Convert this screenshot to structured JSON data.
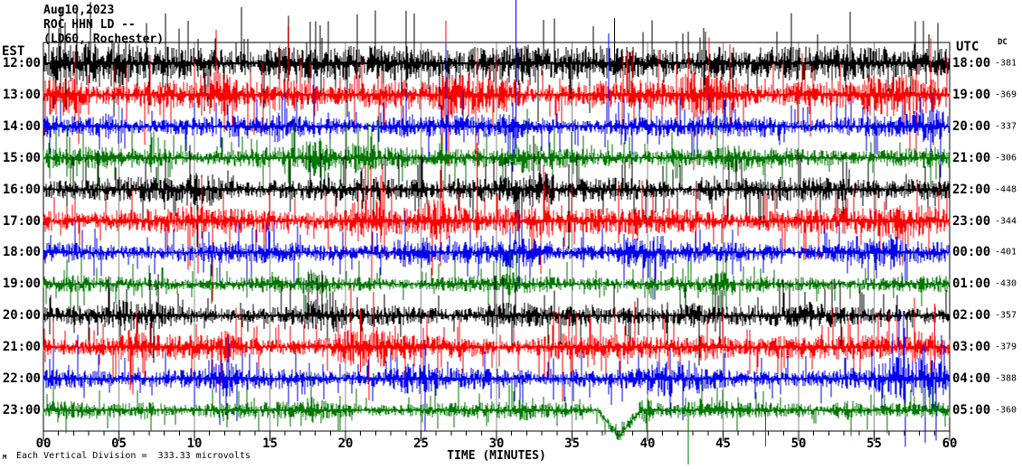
{
  "header": {
    "date": "Aug10,2023",
    "station_line": "ROC HHN LD --",
    "location_line": "(LD60, Rochester)"
  },
  "left_axis": {
    "label": "EST",
    "times": [
      "12:00",
      "13:00",
      "14:00",
      "15:00",
      "16:00",
      "17:00",
      "18:00",
      "19:00",
      "20:00",
      "21:00",
      "22:00",
      "23:00"
    ]
  },
  "right_axis": {
    "label": "UTC",
    "times": [
      "18:00",
      "19:00",
      "20:00",
      "21:00",
      "22:00",
      "23:00",
      "00:00",
      "01:00",
      "02:00",
      "03:00",
      "04:00",
      "05:00"
    ]
  },
  "dc_column": {
    "label": "DC",
    "values": [
      "-381",
      "-369",
      "-337",
      "-306",
      "-448",
      "-344",
      "-401",
      "-430",
      "-357",
      "-379",
      "-388",
      "-360"
    ]
  },
  "x_axis": {
    "title": "TIME (MINUTES)",
    "tick_labels": [
      "00",
      "05",
      "10",
      "15",
      "20",
      "25",
      "30",
      "35",
      "40",
      "45",
      "50",
      "55",
      "60"
    ],
    "minutes_min": 0,
    "minutes_max": 60,
    "minor_tick_every_min": 1,
    "major_tick_every_min": 5
  },
  "footer": {
    "marker": "M",
    "scale_note": "Each Vertical Division =  333.33 microvolts"
  },
  "colors": {
    "black": "#000000",
    "red": "#ff0000",
    "blue": "#0000ee",
    "green": "#007700",
    "grid": "#8c8c8c",
    "border": "#000000",
    "background": "#ffffff"
  },
  "chart_data": {
    "type": "line",
    "subtype": "helicorder-seismogram",
    "title": "ROC HHN LD -- (LD60, Rochester) Aug10,2023",
    "xlabel": "TIME (MINUTES)",
    "x_range": [
      0,
      60
    ],
    "grid": "vertical-gray-lines-every-5-minutes",
    "vertical_division_microvolts": 333.33,
    "rows": [
      {
        "est": "12:00",
        "utc": "18:00",
        "dc": -381,
        "color": "black",
        "amp": 14,
        "bursts": [
          [
            0,
            6,
            1.5
          ],
          [
            14,
            17,
            1.4
          ],
          [
            28,
            33,
            1.6
          ],
          [
            43,
            46,
            1.4
          ],
          [
            52,
            60,
            1.3
          ]
        ],
        "events": [
          {
            "min": 13.1,
            "up": 62,
            "dn": 10
          },
          {
            "min": 37.8,
            "up": 50,
            "dn": 8
          }
        ]
      },
      {
        "est": "13:00",
        "utc": "19:00",
        "dc": -369,
        "color": "red",
        "amp": 12,
        "bursts": [
          [
            0,
            3,
            2.1
          ],
          [
            10,
            13,
            1.5
          ],
          [
            15,
            18,
            1.6
          ],
          [
            26,
            32,
            1.6
          ],
          [
            42,
            47,
            1.8
          ],
          [
            54,
            60,
            1.5
          ]
        ],
        "events": [
          {
            "min": 16.2,
            "up": 76,
            "dn": 12
          },
          {
            "min": 2.1,
            "up": 48,
            "dn": 28
          }
        ]
      },
      {
        "est": "14:00",
        "utc": "20:00",
        "dc": -337,
        "color": "blue",
        "amp": 9,
        "bursts": [
          [
            3,
            5,
            1.4
          ],
          [
            15,
            16,
            1.8
          ],
          [
            23,
            25,
            1.3
          ],
          [
            30,
            32,
            1.5
          ],
          [
            47,
            49,
            1.3
          ],
          [
            57,
            60,
            1.6
          ]
        ],
        "events": [
          {
            "min": 31.3,
            "up": 140,
            "dn": 24
          },
          {
            "min": 17.9,
            "up": 58,
            "dn": 12
          }
        ]
      },
      {
        "est": "15:00",
        "utc": "21:00",
        "dc": -306,
        "color": "green",
        "amp": 9,
        "bursts": [
          [
            17,
            19,
            1.9
          ],
          [
            20,
            25,
            1.5
          ],
          [
            31,
            33,
            1.4
          ],
          [
            45,
            47,
            1.3
          ]
        ],
        "events": [
          {
            "min": 21.5,
            "up": 38,
            "dn": 38
          }
        ]
      },
      {
        "est": "16:00",
        "utc": "22:00",
        "dc": -448,
        "color": "black",
        "amp": 10,
        "bursts": [
          [
            9,
            12,
            1.7
          ],
          [
            27,
            34,
            1.5
          ],
          [
            43,
            45,
            1.6
          ],
          [
            56,
            59,
            1.4
          ]
        ],
        "events": [
          {
            "min": 34.8,
            "up": 28,
            "dn": 66
          }
        ]
      },
      {
        "est": "17:00",
        "utc": "23:00",
        "dc": -344,
        "color": "red",
        "amp": 11,
        "bursts": [
          [
            9,
            11,
            1.4
          ],
          [
            20,
            23,
            1.7
          ],
          [
            25,
            28,
            1.6
          ],
          [
            30,
            34,
            1.8
          ],
          [
            55,
            60,
            1.5
          ]
        ],
        "events": [
          {
            "min": 28.7,
            "up": 86,
            "dn": 14
          },
          {
            "min": 43.2,
            "up": 38,
            "dn": 34
          }
        ]
      },
      {
        "est": "18:00",
        "utc": "00:00",
        "dc": -401,
        "color": "blue",
        "amp": 9,
        "bursts": [
          [
            23,
            26,
            1.5
          ],
          [
            30,
            34,
            1.6
          ],
          [
            38,
            42,
            1.5
          ],
          [
            53,
            57,
            1.6
          ]
        ],
        "events": [
          {
            "min": 31.5,
            "up": 48,
            "dn": 38
          }
        ]
      },
      {
        "est": "19:00",
        "utc": "01:00",
        "dc": -430,
        "color": "green",
        "amp": 7,
        "bursts": [
          [
            17,
            19,
            1.6
          ],
          [
            30,
            32,
            1.3
          ],
          [
            44,
            46,
            1.5
          ]
        ],
        "events": [
          {
            "min": 45.2,
            "up": 32,
            "dn": 28
          }
        ]
      },
      {
        "est": "20:00",
        "utc": "02:00",
        "dc": -357,
        "color": "black",
        "amp": 9,
        "bursts": [
          [
            4,
            8,
            1.4
          ],
          [
            17,
            20,
            1.5
          ],
          [
            29,
            33,
            1.4
          ],
          [
            41,
            44,
            1.6
          ],
          [
            50,
            53,
            1.3
          ]
        ],
        "events": [
          {
            "min": 44.5,
            "up": 38,
            "dn": 18
          }
        ]
      },
      {
        "est": "21:00",
        "utc": "03:00",
        "dc": -379,
        "color": "red",
        "amp": 10,
        "bursts": [
          [
            5,
            7,
            1.6
          ],
          [
            11,
            13,
            1.5
          ],
          [
            19,
            24,
            1.7
          ],
          [
            33,
            35,
            1.3
          ],
          [
            43,
            46,
            1.6
          ],
          [
            57,
            60,
            1.8
          ]
        ],
        "events": [
          {
            "min": 21.0,
            "up": 42,
            "dn": 28
          },
          {
            "min": 59.0,
            "up": 48,
            "dn": 24
          }
        ]
      },
      {
        "est": "22:00",
        "utc": "04:00",
        "dc": -388,
        "color": "blue",
        "amp": 9,
        "bursts": [
          [
            11,
            13,
            1.7
          ],
          [
            23,
            26,
            1.5
          ],
          [
            34,
            36,
            1.3
          ],
          [
            40,
            44,
            1.6
          ],
          [
            55,
            60,
            2.0
          ]
        ],
        "events": [
          {
            "min": 57.0,
            "up": 56,
            "dn": 30
          },
          {
            "min": 41.5,
            "up": 34,
            "dn": 34
          }
        ]
      },
      {
        "est": "23:00",
        "utc": "05:00",
        "dc": -360,
        "color": "green",
        "amp": 7,
        "bursts": [
          [
            6,
            8,
            1.4
          ],
          [
            17,
            19,
            1.6
          ],
          [
            31,
            33,
            1.5
          ],
          [
            39.3,
            40.5,
            2.2
          ],
          [
            43,
            45,
            1.5
          ],
          [
            52,
            54,
            1.6
          ]
        ],
        "dip": {
          "center": 38.1,
          "half_width": 1.4,
          "depth": 30
        },
        "events": [
          {
            "min": 42.7,
            "up": 4,
            "dn": 60
          },
          {
            "min": 47.8,
            "up": 4,
            "dn": 40
          }
        ]
      }
    ]
  }
}
